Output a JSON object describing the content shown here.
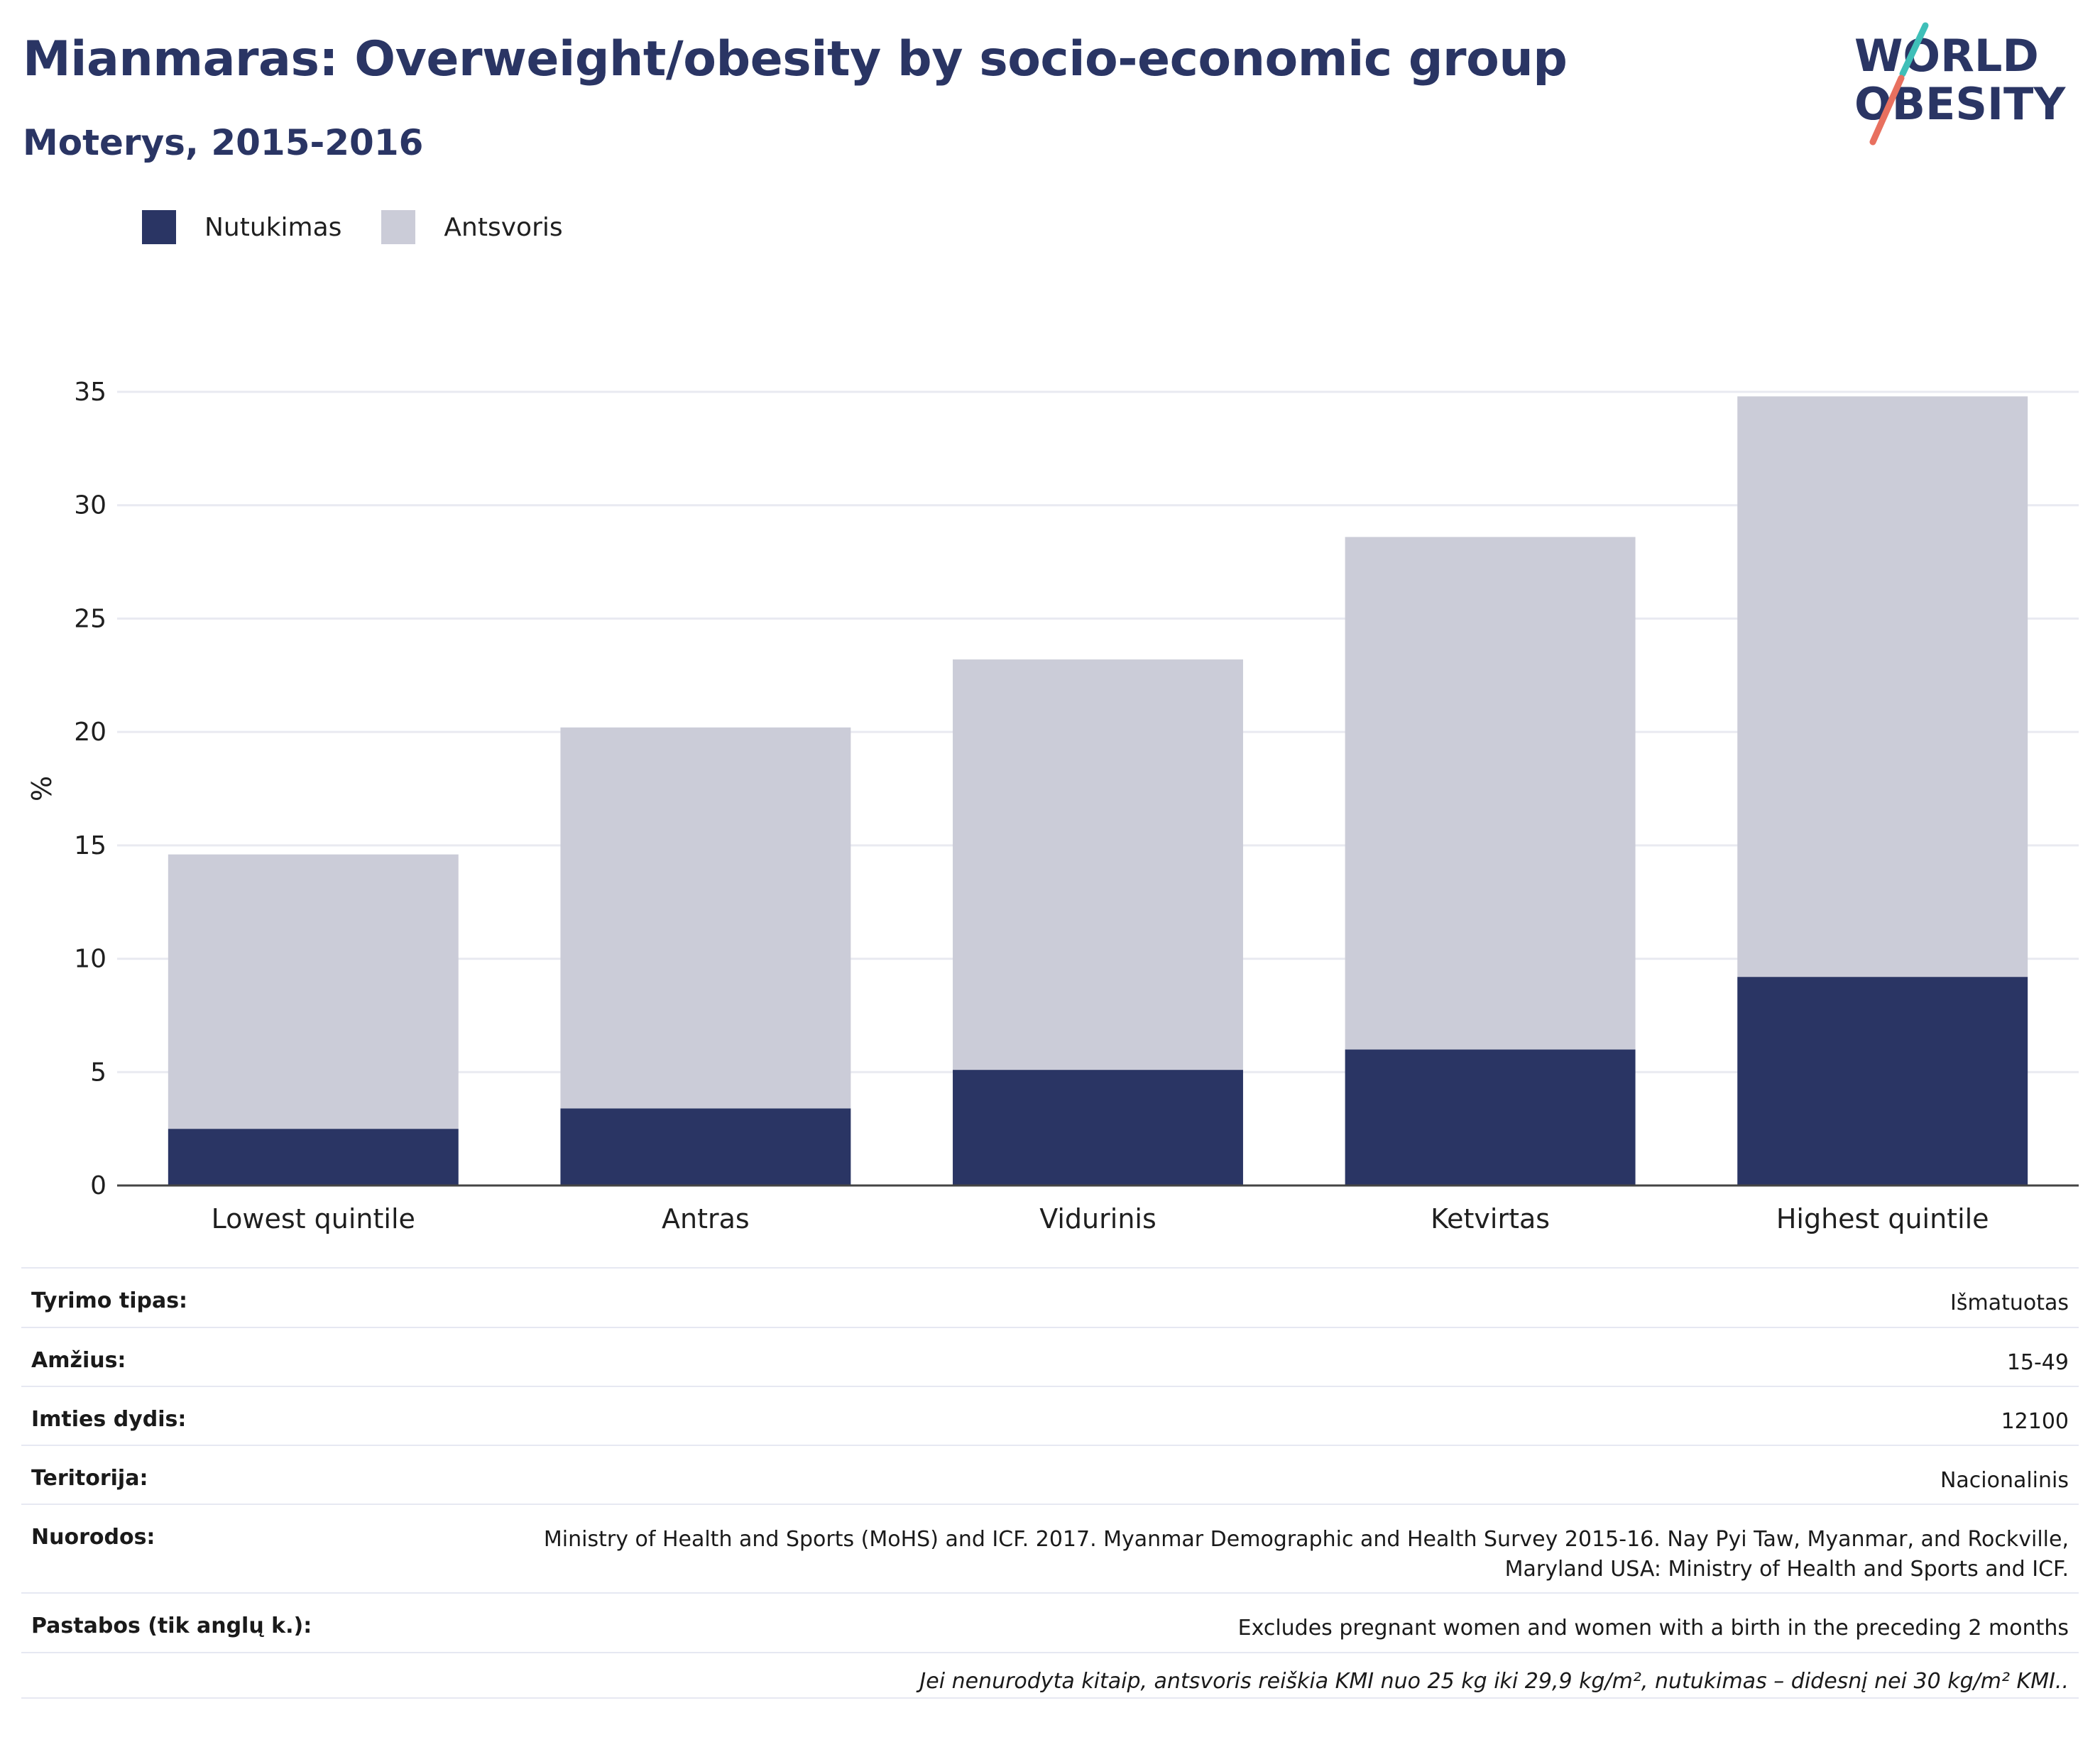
{
  "header": {
    "title": "Mianmaras: Overweight/obesity by socio-economic group",
    "subtitle": "Moterys, 2015-2016"
  },
  "logo": {
    "line1": "WORLD",
    "line2": "OBESITY"
  },
  "colors": {
    "obesity": "#2a3564",
    "overweight": "#cbccd8",
    "title": "#2a3564",
    "logo_teal": "#3fbfb8",
    "logo_coral": "#e8705f"
  },
  "chart_data": {
    "type": "bar",
    "stacked": true,
    "categories": [
      "Lowest quintile",
      "Antras",
      "Vidurinis",
      "Ketvirtas",
      "Highest quintile"
    ],
    "series": [
      {
        "name": "Nutukimas",
        "values": [
          2.5,
          3.4,
          5.1,
          6.0,
          9.2
        ]
      },
      {
        "name": "Antsvoris",
        "values": [
          12.1,
          16.8,
          18.1,
          22.6,
          25.6
        ]
      }
    ],
    "ylabel": "%",
    "ylim": [
      0,
      35
    ],
    "yticks": [
      0,
      5,
      10,
      15,
      20,
      25,
      30,
      35
    ],
    "grid": true,
    "legend": "top-left"
  },
  "info": {
    "rows": [
      {
        "key": "Tyrimo tipas:",
        "value": "Išmatuotas"
      },
      {
        "key": "Amžius:",
        "value": "15-49"
      },
      {
        "key": "Imties dydis:",
        "value": "12100"
      },
      {
        "key": "Teritorija:",
        "value": "Nacionalinis"
      },
      {
        "key": "Nuorodos:",
        "value": "Ministry of Health and Sports (MoHS) and ICF. 2017. Myanmar Demographic and Health Survey 2015-16. Nay Pyi Taw, Myanmar, and Rockville, Maryland USA: Ministry of Health and Sports and ICF."
      },
      {
        "key": "Pastabos (tik anglų k.):",
        "value": "Excludes pregnant women and women with a birth in the preceding 2 months"
      }
    ],
    "note": "Jei nenurodyta kitaip, antsvoris reiškia KMI nuo 25 kg iki 29,9 kg/m², nutukimas – didesnį nei 30 kg/m² KMI.."
  }
}
